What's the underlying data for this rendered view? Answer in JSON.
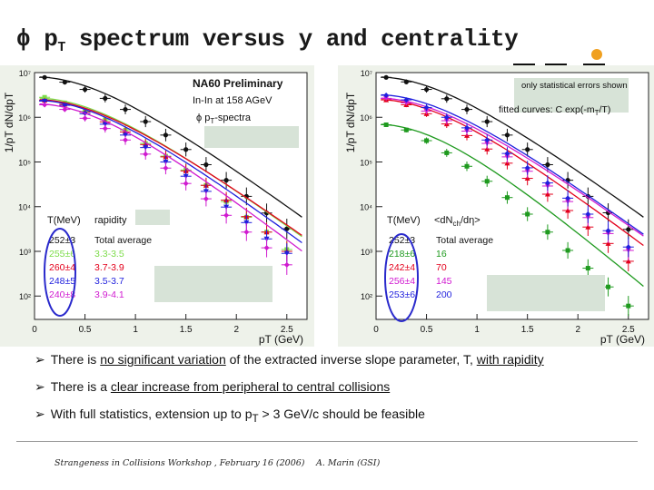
{
  "slide": {
    "title_prefix": "ϕ p",
    "title_sub": "T",
    "title_rest": " spectrum versus y and centrality"
  },
  "colors": {
    "black": "#111111",
    "blue": "#1f1fdd",
    "red": "#e3001b",
    "magenta": "#d01ad0",
    "green": "#1f9a1f",
    "lightgreen": "#7ddc4a",
    "panel_bg": "#eef2ea",
    "box_fill": "#d7e3d7",
    "ellipse": "#2a2acc",
    "accent_orange": "#f0a020"
  },
  "left_plot": {
    "preliminary": "NA60 Preliminary",
    "system": "In-In at 158 AGeV",
    "spectra_label": "ϕ p",
    "spectra_sub": "T",
    "spectra_rest": "-spectra",
    "legend_head_T": "T(MeV)",
    "legend_head_y": "rapidity",
    "rows": [
      {
        "T": "252±3",
        "label": "Total average",
        "color": "#111111"
      },
      {
        "T": "255±6",
        "label": "3.3-3.5",
        "color": "#7ddc4a"
      },
      {
        "T": "260±4",
        "label": "3.7-3.9",
        "color": "#e3001b"
      },
      {
        "T": "248±5",
        "label": "3.5-3.7",
        "color": "#1f1fdd"
      },
      {
        "T": "240±8",
        "label": "3.9-4.1",
        "color": "#d01ad0"
      }
    ]
  },
  "right_plot": {
    "note": "only statistical errors shown",
    "fit_text": "fitted curves: C exp(-m",
    "fit_sub": "T",
    "fit_end": "/T)",
    "legend_head_T": "T(MeV)",
    "legend_head_N": "<dN",
    "legend_head_N_sub": "ch",
    "legend_head_N_end": "/dη>",
    "rows": [
      {
        "T": "252±3",
        "label": "Total average",
        "color": "#111111"
      },
      {
        "T": "218±6",
        "label": "16",
        "color": "#1f9a1f"
      },
      {
        "T": "242±4",
        "label": "70",
        "color": "#e3001b"
      },
      {
        "T": "256±4",
        "label": "145",
        "color": "#d01ad0"
      },
      {
        "T": "253±6",
        "label": "200",
        "color": "#1f1fdd"
      }
    ]
  },
  "chart_data": [
    {
      "type": "scatter",
      "title": "ϕ pT-spectra versus rapidity",
      "xlabel": "pT (GeV)",
      "ylabel": "1/pT dN/dpT",
      "xlim": [
        0,
        2.7
      ],
      "ylim": [
        30,
        10000000
      ],
      "yscale": "log",
      "x_ticks": [
        "0",
        "0.5",
        "1",
        "1.5",
        "2",
        "2.5"
      ],
      "y_ticks": [
        "10²",
        "10³",
        "10⁴",
        "10⁵",
        "10⁶",
        "10⁷"
      ],
      "x": [
        0.1,
        0.3,
        0.5,
        0.7,
        0.9,
        1.1,
        1.3,
        1.5,
        1.7,
        1.9,
        2.1,
        2.3,
        2.5
      ],
      "series": [
        {
          "name": "Total average",
          "color": "#111111",
          "A": 8000000,
          "T": 0.252,
          "values": [
            7800000,
            6100000,
            4200000,
            2650000,
            1500000,
            800000,
            400000,
            190000,
            87000,
            39000,
            17000,
            7200,
            3200
          ]
        },
        {
          "name": "3.3-3.5",
          "color": "#7ddc4a",
          "A": 2700000,
          "T": 0.255,
          "values": [
            2800000,
            2100000,
            1350000,
            880000,
            520000,
            260000,
            135000,
            66000,
            30000,
            13000,
            5800,
            2700,
            1100
          ]
        },
        {
          "name": "3.7-3.9",
          "color": "#e3001b",
          "A": 2500000,
          "T": 0.26,
          "values": [
            2400000,
            1950000,
            1300000,
            790000,
            470000,
            245000,
            130000,
            63000,
            30000,
            14000,
            6000,
            2700,
            1000
          ]
        },
        {
          "name": "3.5-3.7",
          "color": "#1f1fdd",
          "A": 2400000,
          "T": 0.248,
          "values": [
            2300000,
            1850000,
            1200000,
            700000,
            400000,
            210000,
            100000,
            48000,
            22000,
            9800,
            4400,
            1900,
            900
          ]
        },
        {
          "name": "3.9-4.1",
          "color": "#d01ad0",
          "A": 2000000,
          "T": 0.24,
          "values": [
            1900000,
            1500000,
            950000,
            560000,
            310000,
            150000,
            73000,
            33000,
            15000,
            6400,
            2700,
            1200,
            500
          ]
        }
      ]
    },
    {
      "type": "scatter",
      "title": "ϕ pT-spectra versus centrality",
      "xlabel": "pT (GeV)",
      "ylabel": "1/pT dN/dpT",
      "xlim": [
        0,
        2.7
      ],
      "ylim": [
        30,
        10000000
      ],
      "yscale": "log",
      "x_ticks": [
        "0",
        "0.5",
        "1",
        "1.5",
        "2",
        "2.5"
      ],
      "y_ticks": [
        "10²",
        "10³",
        "10⁴",
        "10⁵",
        "10⁶",
        "10⁷"
      ],
      "x": [
        0.1,
        0.3,
        0.5,
        0.7,
        0.9,
        1.1,
        1.3,
        1.5,
        1.7,
        1.9,
        2.1,
        2.3,
        2.5
      ],
      "series": [
        {
          "name": "Total average",
          "color": "#111111",
          "A": 8000000,
          "T": 0.252,
          "values": [
            7800000,
            6200000,
            4200000,
            2600000,
            1500000,
            800000,
            400000,
            190000,
            87000,
            39000,
            17000,
            7300,
            3100
          ]
        },
        {
          "name": "16",
          "color": "#1f9a1f",
          "A": 700000,
          "T": 0.218,
          "values": [
            680000,
            520000,
            300000,
            160000,
            80000,
            37000,
            16000,
            6800,
            2700,
            1050,
            420,
            160,
            60
          ]
        },
        {
          "name": "70",
          "color": "#e3001b",
          "A": 2500000,
          "T": 0.242,
          "values": [
            2450000,
            1900000,
            1200000,
            710000,
            390000,
            195000,
            94000,
            43000,
            19000,
            8200,
            3500,
            1500,
            600
          ]
        },
        {
          "name": "145",
          "color": "#d01ad0",
          "A": 2700000,
          "T": 0.256,
          "values": [
            2650000,
            2100000,
            1380000,
            840000,
            490000,
            260000,
            130000,
            62000,
            29000,
            13000,
            5700,
            2500,
            1050
          ]
        },
        {
          "name": "200",
          "color": "#1f1fdd",
          "A": 3200000,
          "T": 0.253,
          "values": [
            3100000,
            2450000,
            1650000,
            1000000,
            580000,
            310000,
            155000,
            74000,
            34000,
            15500,
            6800,
            2900,
            1250
          ]
        }
      ]
    }
  ],
  "bullets": [
    {
      "pre": "There is ",
      "u": "no significant variation",
      "mid": " of the extracted inverse slope parameter, T, ",
      "u2": "with rapidity",
      "post": ""
    },
    {
      "pre": "There is a ",
      "u": "clear increase from peripheral to central collisions",
      "mid": "",
      "u2": "",
      "post": ""
    },
    {
      "pre": "With full statistics, extension up to p",
      "sub": "T",
      "rest": " > 3 GeV/c should be feasible"
    }
  ],
  "footer": {
    "left": "Strangeness in Collisions Workshop , February 16 (2006)",
    "right": "A. Marin (GSI)"
  }
}
